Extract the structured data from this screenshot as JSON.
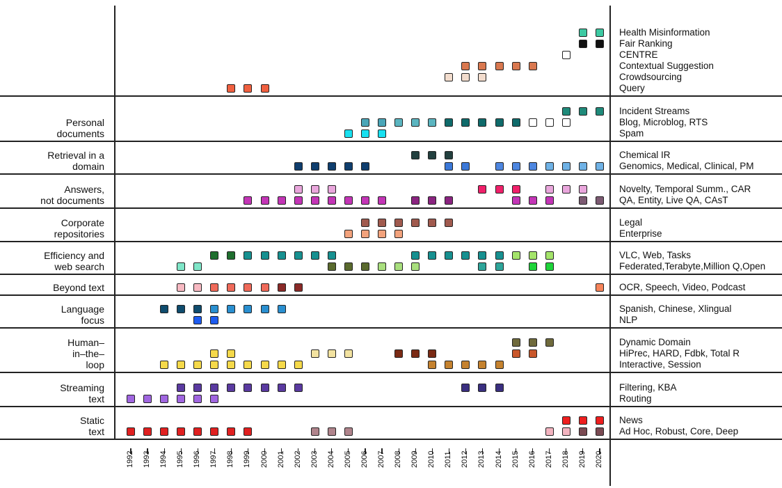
{
  "chart_data": {
    "type": "timeline-grid",
    "title": "",
    "xlabel": "",
    "ylabel": "",
    "years": [
      "1992",
      "1993",
      "1994",
      "1995",
      "1996",
      "1997",
      "1998",
      "1999",
      "2000",
      "2001",
      "2002",
      "2003",
      "2004",
      "2005",
      "2006",
      "2007",
      "2008",
      "2009",
      "2010",
      "2011",
      "2012",
      "2013",
      "2014",
      "2015",
      "2016",
      "2017",
      "2018",
      "2019",
      "2020"
    ],
    "categories": [
      {
        "label": "",
        "tracks": [
          {
            "name": "Health Misinformation",
            "color": "#3cc9a2",
            "years": [
              2019,
              2020
            ]
          },
          {
            "name": "Fair Ranking",
            "color": "#111111",
            "years": [
              2019,
              2020
            ]
          },
          {
            "name": "CENTRE",
            "color": "#ffffff",
            "years": [
              2018
            ]
          },
          {
            "name": "Contextual Suggestion",
            "color": "#d9784f",
            "years": [
              2012,
              2013,
              2014,
              2015,
              2016
            ]
          },
          {
            "name": "Crowdsourcing",
            "color": "#f2dccd",
            "years": [
              2011,
              2012,
              2013
            ]
          },
          {
            "name": "Query",
            "color": "#f06040",
            "years": [
              1998,
              1999,
              2000
            ]
          }
        ]
      },
      {
        "label": "Personal\ndocuments",
        "tracks": [
          {
            "name": "Incident Streams",
            "color": "#1f8a7a",
            "years": [
              2018,
              2019,
              2020
            ]
          },
          {
            "name": "Blog, Microblog, RTS",
            "colors": {
              "2006": "#4aa6b8",
              "2007": "#4aa6b8",
              "2008": "#5bb5c0",
              "2009": "#5bb5c0",
              "2010": "#5bb5c0",
              "2011": "#0f6b6b",
              "2012": "#0f6b6b",
              "2013": "#0f6b6b",
              "2014": "#0f6b6b",
              "2015": "#0f6b6b",
              "2016": "#ffffff",
              "2017": "#ffffff",
              "2018": "#ffffff"
            },
            "years": [
              2006,
              2007,
              2008,
              2009,
              2010,
              2011,
              2012,
              2013,
              2014,
              2015,
              2016,
              2017,
              2018
            ]
          },
          {
            "name": "Spam",
            "color": "#18e0f0",
            "years": [
              2005,
              2006,
              2007
            ]
          }
        ]
      },
      {
        "label": "Retrieval in a\ndomain",
        "tracks": [
          {
            "name": "Chemical IR",
            "color": "#23403f",
            "years": [
              2009,
              2010,
              2011
            ]
          },
          {
            "name": "Genomics, Medical, Clinical, PM",
            "colors": {
              "2002": "#0f3e6e",
              "2003": "#0f3e6e",
              "2004": "#0f3e6e",
              "2005": "#0f3e6e",
              "2006": "#0f3e6e",
              "2011": "#3b78d8",
              "2012": "#3b78d8",
              "2014": "#4d86e0",
              "2015": "#4d86e0",
              "2016": "#4d86e0",
              "2017": "#6fb2e6",
              "2018": "#6fb2e6",
              "2019": "#6fb2e6",
              "2020": "#6fb2e6"
            },
            "years": [
              2002,
              2003,
              2004,
              2005,
              2006,
              2011,
              2012,
              2014,
              2015,
              2016,
              2017,
              2018,
              2019,
              2020
            ]
          }
        ]
      },
      {
        "label": "Answers,\nnot documents",
        "tracks": [
          {
            "name": "Novelty, Temporal Summ., CAR",
            "colors": {
              "2002": "#e9a6dc",
              "2003": "#e9a6dc",
              "2004": "#e9a6dc",
              "2013": "#f0206a",
              "2014": "#f0206a",
              "2015": "#f0206a",
              "2017": "#e9a6dc",
              "2018": "#e9a6dc",
              "2019": "#e9a6dc"
            },
            "years": [
              2002,
              2003,
              2004,
              2013,
              2014,
              2015,
              2017,
              2018,
              2019
            ]
          },
          {
            "name": "QA, Entity, Live QA, CAsT",
            "colors": {
              "1999": "#c335b6",
              "2000": "#c335b6",
              "2001": "#c335b6",
              "2002": "#c335b6",
              "2003": "#c335b6",
              "2004": "#c335b6",
              "2005": "#c335b6",
              "2006": "#c335b6",
              "2007": "#c335b6",
              "2009": "#8a2480",
              "2010": "#8a2480",
              "2011": "#8a2480",
              "2015": "#c335b6",
              "2016": "#c335b6",
              "2017": "#c335b6",
              "2019": "#7c5a72",
              "2020": "#7c5a72"
            },
            "years": [
              1999,
              2000,
              2001,
              2002,
              2003,
              2004,
              2005,
              2006,
              2007,
              2009,
              2010,
              2011,
              2015,
              2016,
              2017,
              2019,
              2020
            ]
          }
        ]
      },
      {
        "label": "Corporate\nrepositories",
        "tracks": [
          {
            "name": "Legal",
            "color": "#a05a4e",
            "years": [
              2006,
              2007,
              2008,
              2009,
              2010,
              2011
            ]
          },
          {
            "name": "Enterprise",
            "color": "#f2a27c",
            "years": [
              2005,
              2006,
              2007,
              2008
            ]
          }
        ]
      },
      {
        "label": "Efficiency and\nweb search",
        "tracks": [
          {
            "name": "VLC, Web, Tasks",
            "colors": {
              "1997": "#1f6e2e",
              "1998": "#1f6e2e",
              "1999": "#179090",
              "2000": "#179090",
              "2001": "#179090",
              "2002": "#179090",
              "2003": "#179090",
              "2004": "#179090",
              "2009": "#179090",
              "2010": "#179090",
              "2011": "#179090",
              "2012": "#179090",
              "2013": "#179090",
              "2014": "#179090",
              "2015": "#a4e46a",
              "2016": "#a4e46a",
              "2017": "#a4e46a"
            },
            "years": [
              1997,
              1998,
              1999,
              2000,
              2001,
              2002,
              2003,
              2004,
              2009,
              2010,
              2011,
              2012,
              2013,
              2014,
              2015,
              2016,
              2017
            ]
          },
          {
            "name": "Federated,Terabyte,Million Q,Open",
            "colors": {
              "1995": "#7fe6c8",
              "1996": "#7fe6c8",
              "2004": "#5a6a2e",
              "2005": "#5a6a2e",
              "2006": "#5a6a2e",
              "2007": "#a9df7e",
              "2008": "#a9df7e",
              "2009": "#a9df7e",
              "2013": "#2ea59a",
              "2014": "#2ea59a",
              "2016": "#1ed43a",
              "2017": "#1ed43a"
            },
            "years": [
              1995,
              1996,
              2004,
              2005,
              2006,
              2007,
              2008,
              2009,
              2013,
              2014,
              2016,
              2017
            ]
          }
        ]
      },
      {
        "label": "Beyond text",
        "tracks": [
          {
            "name": "OCR, Speech, Video, Podcast",
            "colors": {
              "1995": "#f7b9c2",
              "1996": "#f7b9c2",
              "1997": "#ef6a5a",
              "1998": "#ef6a5a",
              "1999": "#ef6a5a",
              "2000": "#ef6a5a",
              "2001": "#8a2a28",
              "2002": "#8a2a28",
              "2020": "#f6845a"
            },
            "years": [
              1995,
              1996,
              1997,
              1998,
              1999,
              2000,
              2001,
              2002,
              2020
            ]
          }
        ]
      },
      {
        "label": "Language\nfocus",
        "tracks": [
          {
            "name": "Spanish, Chinese, Xlingual",
            "colors": {
              "1994": "#0f4c6e",
              "1995": "#0f4c6e",
              "1996": "#0f4c6e",
              "1997": "#2a8fd0",
              "1998": "#2a8fd0",
              "1999": "#2a8fd0",
              "2000": "#2a8fd0",
              "2001": "#2a8fd0"
            },
            "years": [
              1994,
              1995,
              1996,
              1997,
              1998,
              1999,
              2000,
              2001
            ]
          },
          {
            "name": "NLP",
            "color": "#1e5cf0",
            "years": [
              1996,
              1997
            ]
          }
        ]
      },
      {
        "label": "Human–\nin–the–\nloop",
        "tracks": [
          {
            "name": "Dynamic Domain",
            "color": "#6f6a3c",
            "years": [
              2015,
              2016,
              2017
            ]
          },
          {
            "name": "HiPrec, HARD, Fdbk, Total R",
            "colors": {
              "1997": "#f5d94a",
              "1998": "#f5d94a",
              "2003": "#f2e2a0",
              "2004": "#f2e2a0",
              "2005": "#f2e2a0",
              "2008": "#7a2a14",
              "2009": "#7a2a14",
              "2010": "#7a2a14",
              "2015": "#c9572a",
              "2016": "#c9572a"
            },
            "years": [
              1997,
              1998,
              2003,
              2004,
              2005,
              2008,
              2009,
              2010,
              2015,
              2016
            ]
          },
          {
            "name": "Interactive, Session",
            "colors": {
              "1994": "#f5d94a",
              "1995": "#f5d94a",
              "1996": "#f5d94a",
              "1997": "#f5d94a",
              "1998": "#f5d94a",
              "1999": "#f5d94a",
              "2000": "#f5d94a",
              "2001": "#f5d94a",
              "2002": "#f5d94a",
              "2010": "#c5822f",
              "2011": "#c5822f",
              "2012": "#c5822f",
              "2013": "#c5822f",
              "2014": "#c5822f"
            },
            "years": [
              1994,
              1995,
              1996,
              1997,
              1998,
              1999,
              2000,
              2001,
              2002,
              2010,
              2011,
              2012,
              2013,
              2014
            ]
          }
        ]
      },
      {
        "label": "Streaming\ntext",
        "tracks": [
          {
            "name": "Filtering, KBA",
            "colors": {
              "1995": "#5a3aa0",
              "1996": "#5a3aa0",
              "1997": "#5a3aa0",
              "1998": "#5a3aa0",
              "1999": "#5a3aa0",
              "2000": "#5a3aa0",
              "2001": "#5a3aa0",
              "2002": "#5a3aa0",
              "2012": "#3a2f80",
              "2013": "#3a2f80",
              "2014": "#3a2f80"
            },
            "years": [
              1995,
              1996,
              1997,
              1998,
              1999,
              2000,
              2001,
              2002,
              2012,
              2013,
              2014
            ]
          },
          {
            "name": "Routing",
            "color": "#a066e0",
            "years": [
              1992,
              1993,
              1994,
              1995,
              1996,
              1997
            ]
          }
        ]
      },
      {
        "label": "Static\ntext",
        "tracks": [
          {
            "name": "News",
            "color": "#ee1f1f",
            "years": [
              2018,
              2019,
              2020
            ]
          },
          {
            "name": "Ad Hoc, Robust, Core, Deep",
            "colors": {
              "1992": "#e02020",
              "1993": "#e02020",
              "1994": "#e02020",
              "1995": "#e02020",
              "1996": "#e02020",
              "1997": "#e02020",
              "1998": "#e02020",
              "1999": "#e02020",
              "2003": "#b0848c",
              "2004": "#b0848c",
              "2005": "#b0848c",
              "2017": "#f3b4c0",
              "2018": "#f3b4c0",
              "2019": "#7a4a52",
              "2020": "#7a4a52"
            },
            "years": [
              1992,
              1993,
              1994,
              1995,
              1996,
              1997,
              1998,
              1999,
              2003,
              2004,
              2005,
              2017,
              2018,
              2019,
              2020
            ]
          }
        ]
      }
    ]
  }
}
